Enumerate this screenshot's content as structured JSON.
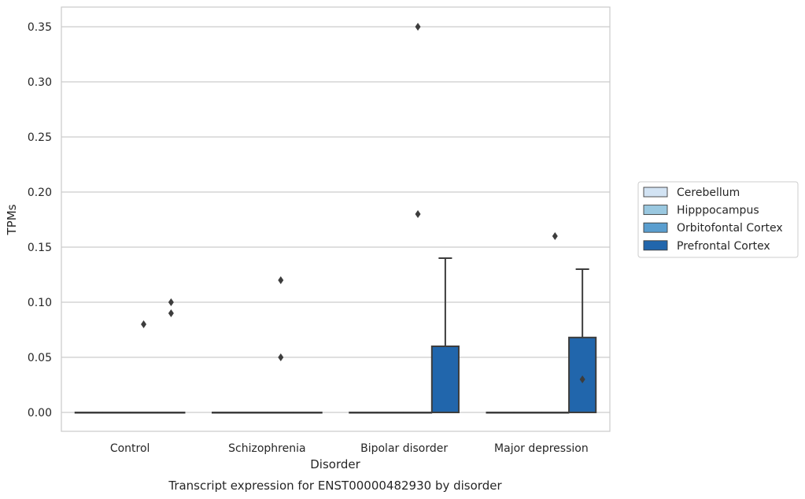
{
  "chart_data": {
    "type": "box",
    "title": "",
    "caption": "Transcript expression for ENST00000482930 by disorder",
    "xlabel": "Disorder",
    "ylabel": "TPMs",
    "ylim": [
      -0.017,
      0.368
    ],
    "yticks": [
      "0.00",
      "0.05",
      "0.10",
      "0.15",
      "0.20",
      "0.25",
      "0.30",
      "0.35"
    ],
    "ytick_values": [
      0,
      0.05,
      0.1,
      0.15,
      0.2,
      0.25,
      0.3,
      0.35
    ],
    "grid": "horizontal",
    "legend_placement": "right",
    "categories": [
      "Control",
      "Schizophrenia",
      "Bipolar disorder",
      "Major depression"
    ],
    "series": [
      {
        "name": "Cerebellum",
        "color": "#d2e3f3",
        "boxes": [
          {
            "q1": 0,
            "median": 0,
            "q3": 0,
            "whisker_low": 0,
            "whisker_high": 0,
            "outliers": []
          },
          {
            "q1": 0,
            "median": 0,
            "q3": 0,
            "whisker_low": 0,
            "whisker_high": 0,
            "outliers": []
          },
          {
            "q1": 0,
            "median": 0,
            "q3": 0,
            "whisker_low": 0,
            "whisker_high": 0,
            "outliers": []
          },
          {
            "q1": 0,
            "median": 0,
            "q3": 0,
            "whisker_low": 0,
            "whisker_high": 0,
            "outliers": []
          }
        ]
      },
      {
        "name": "Hipppocampus",
        "color": "#9ac8e0",
        "boxes": [
          {
            "q1": 0,
            "median": 0,
            "q3": 0,
            "whisker_low": 0,
            "whisker_high": 0,
            "outliers": []
          },
          {
            "q1": 0,
            "median": 0,
            "q3": 0,
            "whisker_low": 0,
            "whisker_high": 0,
            "outliers": []
          },
          {
            "q1": 0,
            "median": 0,
            "q3": 0,
            "whisker_low": 0,
            "whisker_high": 0,
            "outliers": []
          },
          {
            "q1": 0,
            "median": 0,
            "q3": 0,
            "whisker_low": 0,
            "whisker_high": 0,
            "outliers": []
          }
        ]
      },
      {
        "name": "Orbitofontal Cortex",
        "color": "#5a9ecf",
        "boxes": [
          {
            "q1": 0,
            "median": 0,
            "q3": 0,
            "whisker_low": 0,
            "whisker_high": 0,
            "outliers": [
              0.08
            ]
          },
          {
            "q1": 0,
            "median": 0,
            "q3": 0,
            "whisker_low": 0,
            "whisker_high": 0,
            "outliers": [
              0.12,
              0.05
            ]
          },
          {
            "q1": 0,
            "median": 0,
            "q3": 0,
            "whisker_low": 0,
            "whisker_high": 0,
            "outliers": [
              0.18,
              0.35
            ]
          },
          {
            "q1": 0,
            "median": 0,
            "q3": 0,
            "whisker_low": 0,
            "whisker_high": 0,
            "outliers": [
              0.16
            ]
          }
        ]
      },
      {
        "name": "Prefrontal Cortex",
        "color": "#2166ac",
        "boxes": [
          {
            "q1": 0,
            "median": 0,
            "q3": 0,
            "whisker_low": 0,
            "whisker_high": 0,
            "outliers": [
              0.1,
              0.09
            ]
          },
          {
            "q1": 0,
            "median": 0,
            "q3": 0,
            "whisker_low": 0,
            "whisker_high": 0,
            "outliers": []
          },
          {
            "q1": 0,
            "median": 0,
            "q3": 0.06,
            "whisker_low": 0,
            "whisker_high": 0.14,
            "outliers": []
          },
          {
            "q1": 0,
            "median": 0,
            "q3": 0.068,
            "whisker_low": 0,
            "whisker_high": 0.13,
            "outliers": [
              0.03
            ]
          }
        ]
      }
    ]
  }
}
